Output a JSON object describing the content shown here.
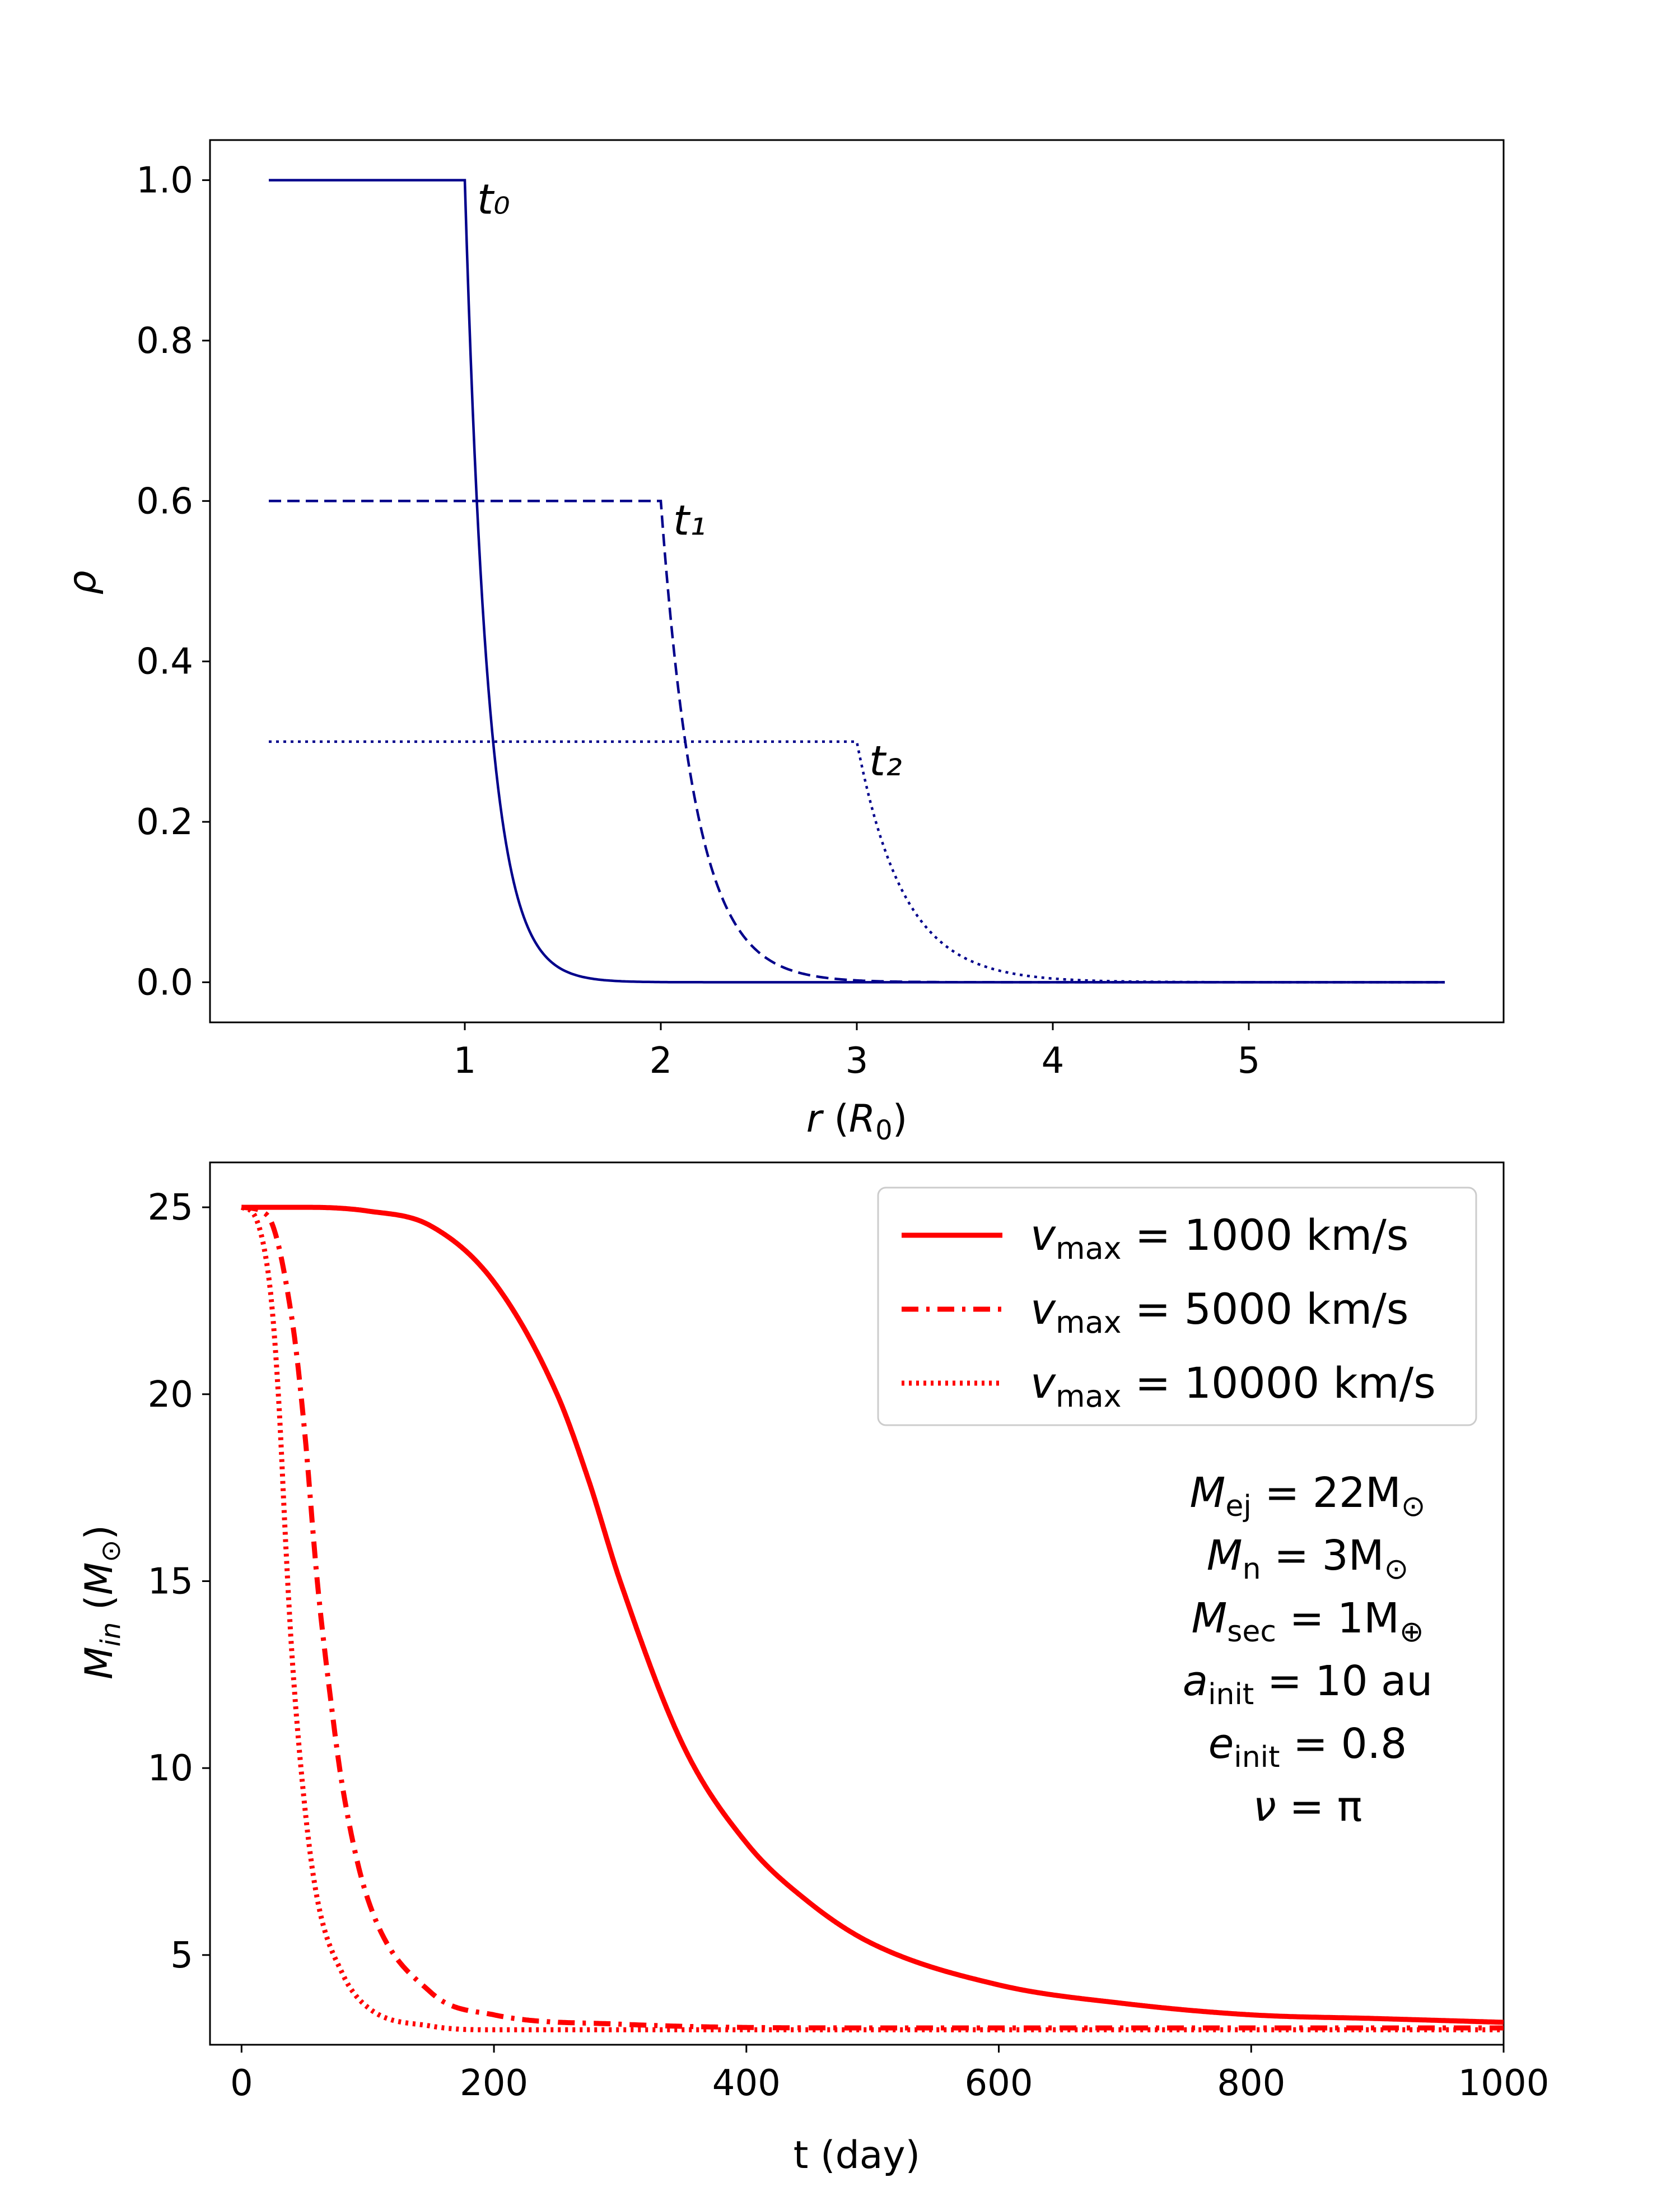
{
  "chart_data": [
    {
      "type": "line",
      "xlabel": "r (R₀)",
      "ylabel": "ρ",
      "xlim": [
        -0.3,
        6.3
      ],
      "ylim": [
        -0.05,
        1.05
      ],
      "xticks": [
        1,
        2,
        3,
        4,
        5
      ],
      "yticks": [
        0.0,
        0.2,
        0.4,
        0.6,
        0.8,
        1.0
      ],
      "grid": false,
      "color": "#00008B",
      "series": [
        {
          "name": "t₀",
          "style": "solid",
          "plateau": 1.0,
          "x_drop": 1.0,
          "decay_width": 0.12
        },
        {
          "name": "t₁",
          "style": "dashed",
          "plateau": 0.6,
          "x_drop": 2.0,
          "decay_width": 0.18
        },
        {
          "name": "t₂",
          "style": "dotted",
          "plateau": 0.3,
          "x_drop": 3.0,
          "decay_width": 0.24
        }
      ]
    },
    {
      "type": "line",
      "xlabel": "t (day)",
      "ylabel": "M_in (M⊙)",
      "xlim": [
        -25,
        1000
      ],
      "ylim": [
        2.6,
        26.2
      ],
      "xticks": [
        0,
        200,
        400,
        600,
        800,
        1000
      ],
      "yticks": [
        5,
        10,
        15,
        20,
        25
      ],
      "grid": false,
      "color": "#FF0000",
      "legend_position": "top-right",
      "series": [
        {
          "name": "v_max = 1000 km/s",
          "style": "solid",
          "x": [
            0,
            50,
            100,
            150,
            200,
            250,
            275,
            300,
            350,
            400,
            450,
            500,
            600,
            700,
            800,
            900,
            1000
          ],
          "y": [
            25.0,
            25.0,
            24.9,
            24.5,
            23.0,
            20.0,
            17.7,
            15.0,
            10.6,
            8.0,
            6.4,
            5.3,
            4.2,
            3.7,
            3.4,
            3.3,
            3.2
          ]
        },
        {
          "name": "v_max = 5000 km/s",
          "style": "dashdot",
          "x": [
            0,
            20,
            40,
            50,
            60,
            70,
            80,
            100,
            150,
            200,
            300,
            500,
            1000
          ],
          "y": [
            25.0,
            24.8,
            22.0,
            19.0,
            15.0,
            12.0,
            9.5,
            6.5,
            4.0,
            3.4,
            3.15,
            3.05,
            3.05
          ]
        },
        {
          "name": "v_max = 10000 km/s",
          "style": "dotted",
          "x": [
            0,
            10,
            20,
            25,
            30,
            35,
            40,
            50,
            60,
            80,
            100,
            150,
            200,
            300,
            1000
          ],
          "y": [
            25.0,
            24.8,
            23.5,
            22.0,
            19.5,
            16.0,
            13.0,
            9.0,
            6.5,
            4.5,
            3.6,
            3.1,
            3.0,
            3.0,
            3.0
          ]
        }
      ]
    }
  ],
  "annotations": {
    "legend": [
      {
        "main": "v",
        "sub": "max",
        "rest": " = 1000 km/s"
      },
      {
        "main": "v",
        "sub": "max",
        "rest": " = 5000 km/s"
      },
      {
        "main": "v",
        "sub": "max",
        "rest": " = 10000 km/s"
      }
    ],
    "params": [
      {
        "main": "M",
        "sub": "ej",
        "rest": " = 22M",
        "sym": "⊙"
      },
      {
        "main": "M",
        "sub": "n",
        "rest": " = 3M",
        "sym": "⊙"
      },
      {
        "main": "M",
        "sub": "sec",
        "rest": " = 1M",
        "sym": "⊕"
      },
      {
        "main": "a",
        "sub": "init",
        "rest": " = 10 au",
        "sym": ""
      },
      {
        "main": "e",
        "sub": "init",
        "rest": " = 0.8",
        "sym": ""
      },
      {
        "main": "ν",
        "sub": "",
        "rest": " = π",
        "sym": ""
      }
    ]
  }
}
